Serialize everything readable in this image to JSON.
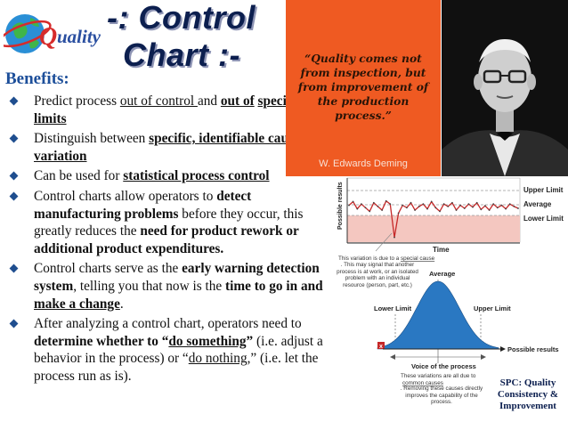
{
  "header": {
    "title_line1": "-: Control",
    "title_line2": "Chart :-",
    "logo_text": "uality"
  },
  "benefits": {
    "heading": "Benefits:",
    "bullets": [
      [
        {
          "t": "Predict process "
        },
        {
          "t": "out of control ",
          "u": true
        },
        {
          "t": "and "
        },
        {
          "t": "out of",
          "b": true,
          "u": true
        },
        {
          "t": " "
        },
        {
          "t": "specification limits",
          "b": true,
          "u": true
        }
      ],
      [
        {
          "t": "Distinguish between "
        },
        {
          "t": "specific, identifiable causes of variation",
          "b": true,
          "u": true
        }
      ],
      [
        {
          "t": "Can be used for "
        },
        {
          "t": "statistical process control",
          "b": true,
          "u": true
        }
      ],
      [
        {
          "t": "Control charts allow operators to "
        },
        {
          "t": "detect manufacturing problems",
          "b": true
        },
        {
          "t": " before they occur, this greatly reduces the "
        },
        {
          "t": "need for product rework or additional product expenditures.",
          "b": true
        }
      ],
      [
        {
          "t": "Control charts serve as the "
        },
        {
          "t": "early warning detection system",
          "b": true
        },
        {
          "t": ", telling you that now is the "
        },
        {
          "t": "time to go in and ",
          "b": true
        },
        {
          "t": "make a change",
          "b": true,
          "u": true
        },
        {
          "t": "."
        }
      ],
      [
        {
          "t": "After analyzing a control chart, operators need to "
        },
        {
          "t": "determine whether to “",
          "b": true
        },
        {
          "t": "do something",
          "b": true,
          "u": true
        },
        {
          "t": "”",
          "b": true
        },
        {
          "t": " (i.e. adjust a behavior in the process) or “"
        },
        {
          "t": "do nothing",
          "u": true
        },
        {
          "t": ",” (i.e. let the  process run as is)."
        }
      ]
    ]
  },
  "quote": {
    "text": "“Quality comes not from inspection, but from improvement of the production process.”",
    "author": "W. Edwards Deming"
  },
  "diagram": {
    "upper_limit_label": "Upper Limit",
    "average_label": "Average",
    "lower_limit_label": "Lower Limit",
    "y_axis_label": "Possible results",
    "x_axis_label": "Time",
    "special_cause_note_prefix": "This variation is due to a ",
    "special_cause_note_link": "special cause",
    "special_cause_note_rest": ". This may signal that another process is at work, or an isolated problem with an individual resource (person, part, etc.)",
    "curve_average_label": "Average",
    "curve_lower_label": "Lower Limit",
    "curve_upper_label": "Upper Limit",
    "possible_results_label": "Possible results",
    "marker_letter": "x",
    "voice_title": "Voice of the process",
    "voice_note_prefix": "These variations are all due to ",
    "voice_note_link": "common causes",
    "voice_note_rest": ". Removing these causes directly improves the capability of the process.",
    "spc_label": "SPC: Quality Consistency & Improvement",
    "series": [
      0.42,
      0.36,
      0.48,
      0.4,
      0.46,
      0.52,
      0.38,
      0.44,
      0.5,
      0.35,
      0.4,
      0.95,
      0.55,
      0.42,
      0.46,
      0.38,
      0.5,
      0.44,
      0.4,
      0.48,
      0.36,
      0.46,
      0.52,
      0.4,
      0.44,
      0.38,
      0.5,
      0.42,
      0.47,
      0.4,
      0.45,
      0.38,
      0.49,
      0.43,
      0.5,
      0.4,
      0.46,
      0.42,
      0.48,
      0.4,
      0.44,
      0.47
    ]
  },
  "colors": {
    "title": "#0c1f4f",
    "heading": "#1d4f9a",
    "quote_bg": "#ef5a22",
    "curve": "#2a78c2",
    "line": "#c62828"
  }
}
